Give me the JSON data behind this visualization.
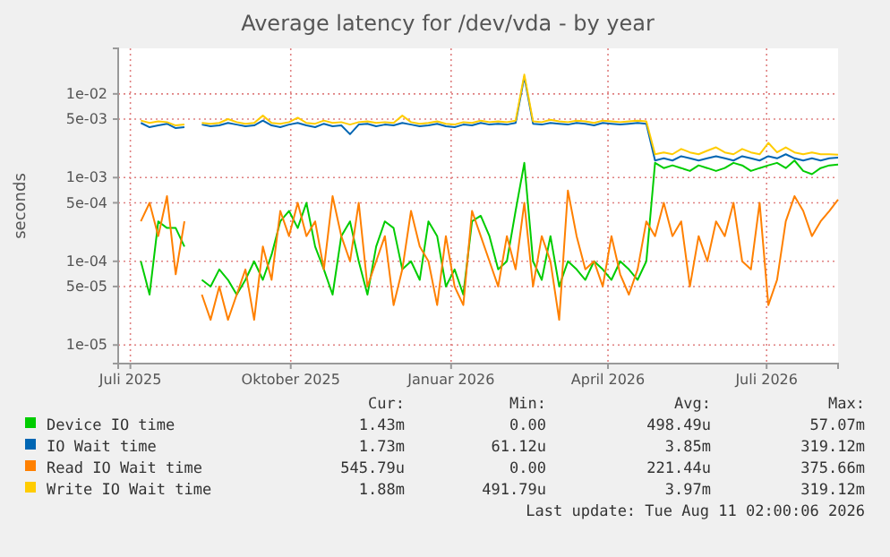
{
  "chart_data": {
    "type": "line",
    "title": "Average latency for /dev/vda - by year",
    "ylabel": "seconds",
    "log": true,
    "grid": true,
    "legend": "bottom",
    "xlim": [
      "2025-06-24",
      "2026-08-11"
    ],
    "xticks": [
      {
        "value": "2025-07-01",
        "label": "Juli 2025"
      },
      {
        "value": "2025-10-01",
        "label": "Oktober 2025"
      },
      {
        "value": "2026-01-01",
        "label": "Januar 2026"
      },
      {
        "value": "2026-04-01",
        "label": "April 2026"
      },
      {
        "value": "2026-07-01",
        "label": "Juli 2026"
      }
    ],
    "ylim": [
      6e-06,
      0.035
    ],
    "yticks": [
      {
        "value": 1e-05,
        "label": "1e-05"
      },
      {
        "value": 5e-05,
        "label": "5e-05"
      },
      {
        "value": 0.0001,
        "label": "1e-04"
      },
      {
        "value": 0.0005,
        "label": "5e-04"
      },
      {
        "value": 0.001,
        "label": "1e-03"
      },
      {
        "value": 0.005,
        "label": "5e-03"
      },
      {
        "value": 0.01,
        "label": "1e-02"
      }
    ],
    "x": [
      "2025-07-07",
      "2025-07-12",
      "2025-07-17",
      "2025-07-22",
      "2025-07-27",
      "2025-08-01",
      "2025-08-06",
      "2025-08-11",
      "2025-08-16",
      "2025-08-21",
      "2025-08-26",
      "2025-08-31",
      "2025-09-05",
      "2025-09-10",
      "2025-09-15",
      "2025-09-20",
      "2025-09-25",
      "2025-09-30",
      "2025-10-05",
      "2025-10-10",
      "2025-10-15",
      "2025-10-20",
      "2025-10-25",
      "2025-10-30",
      "2025-11-04",
      "2025-11-09",
      "2025-11-14",
      "2025-11-19",
      "2025-11-24",
      "2025-11-29",
      "2025-12-04",
      "2025-12-09",
      "2025-12-14",
      "2025-12-19",
      "2025-12-24",
      "2025-12-29",
      "2026-01-03",
      "2026-01-08",
      "2026-01-13",
      "2026-01-18",
      "2026-01-23",
      "2026-01-28",
      "2026-02-02",
      "2026-02-07",
      "2026-02-12",
      "2026-02-17",
      "2026-02-22",
      "2026-02-27",
      "2026-03-04",
      "2026-03-09",
      "2026-03-14",
      "2026-03-19",
      "2026-03-24",
      "2026-03-29",
      "2026-04-03",
      "2026-04-08",
      "2026-04-13",
      "2026-04-18",
      "2026-04-23",
      "2026-04-28",
      "2026-05-03",
      "2026-05-08",
      "2026-05-13",
      "2026-05-18",
      "2026-05-23",
      "2026-05-28",
      "2026-06-02",
      "2026-06-07",
      "2026-06-12",
      "2026-06-17",
      "2026-06-22",
      "2026-06-27",
      "2026-07-02",
      "2026-07-07",
      "2026-07-12",
      "2026-07-17",
      "2026-07-22",
      "2026-07-27",
      "2026-08-01",
      "2026-08-06",
      "2026-08-11"
    ],
    "series": [
      {
        "name": "Device IO time",
        "color": "#00cc00",
        "values": [
          0.0001,
          4e-05,
          0.0003,
          0.00025,
          0.00025,
          0.00015,
          null,
          6e-05,
          5e-05,
          8e-05,
          6e-05,
          4e-05,
          6e-05,
          0.0001,
          6e-05,
          0.00012,
          0.0003,
          0.0004,
          0.00025,
          0.0005,
          0.00015,
          8e-05,
          4e-05,
          0.0002,
          0.0003,
          0.0001,
          4e-05,
          0.00015,
          0.0003,
          0.00025,
          8e-05,
          0.0001,
          6e-05,
          0.0003,
          0.0002,
          5e-05,
          8e-05,
          4e-05,
          0.0003,
          0.00035,
          0.0002,
          8e-05,
          0.0001,
          0.0004,
          0.0015,
          0.0001,
          6e-05,
          0.0002,
          5e-05,
          0.0001,
          8e-05,
          6e-05,
          0.0001,
          8e-05,
          6e-05,
          0.0001,
          8e-05,
          6e-05,
          0.0001,
          0.0015,
          0.0013,
          0.0014,
          0.0013,
          0.0012,
          0.0014,
          0.0013,
          0.0012,
          0.0013,
          0.0015,
          0.0014,
          0.0012,
          0.0013,
          0.0014,
          0.0015,
          0.0013,
          0.0016,
          0.0012,
          0.0011,
          0.0013,
          0.0014,
          0.00143
        ]
      },
      {
        "name": "IO Wait time",
        "color": "#0066b3",
        "values": [
          0.0045,
          0.004,
          0.0042,
          0.0044,
          0.0039,
          0.004,
          null,
          0.0043,
          0.0041,
          0.0042,
          0.0045,
          0.0043,
          0.0041,
          0.0042,
          0.0048,
          0.0042,
          0.004,
          0.0043,
          0.0045,
          0.0042,
          0.004,
          0.0044,
          0.0041,
          0.0042,
          0.0033,
          0.0043,
          0.0044,
          0.0041,
          0.0043,
          0.0042,
          0.0045,
          0.0043,
          0.0041,
          0.0042,
          0.0044,
          0.0041,
          0.004,
          0.0043,
          0.0042,
          0.0045,
          0.0043,
          0.0044,
          0.0043,
          0.0045,
          0.016,
          0.0044,
          0.0043,
          0.0045,
          0.0044,
          0.0043,
          0.0045,
          0.0044,
          0.0042,
          0.0045,
          0.0044,
          0.0043,
          0.0044,
          0.0045,
          0.0044,
          0.0016,
          0.0017,
          0.0016,
          0.0018,
          0.0017,
          0.0016,
          0.0017,
          0.0018,
          0.0017,
          0.0016,
          0.0018,
          0.0017,
          0.0016,
          0.0018,
          0.0017,
          0.0019,
          0.0017,
          0.0016,
          0.0017,
          0.0016,
          0.0017,
          0.00173
        ]
      },
      {
        "name": "Read IO Wait time",
        "color": "#ff8000",
        "values": [
          0.0003,
          0.0005,
          0.0002,
          0.0006,
          7e-05,
          0.0003,
          null,
          4e-05,
          2e-05,
          5e-05,
          2e-05,
          4e-05,
          8e-05,
          2e-05,
          0.00015,
          6e-05,
          0.0004,
          0.0002,
          0.0005,
          0.0002,
          0.0003,
          8e-05,
          0.0006,
          0.0002,
          0.0001,
          0.0005,
          5e-05,
          0.0001,
          0.0002,
          3e-05,
          8e-05,
          0.0004,
          0.00015,
          0.0001,
          3e-05,
          0.0002,
          5e-05,
          3e-05,
          0.0004,
          0.0002,
          0.0001,
          5e-05,
          0.0002,
          8e-05,
          0.0005,
          5e-05,
          0.0002,
          0.0001,
          2e-05,
          0.0007,
          0.0002,
          8e-05,
          0.0001,
          5e-05,
          0.0002,
          7e-05,
          4e-05,
          8e-05,
          0.0003,
          0.0002,
          0.0005,
          0.0002,
          0.0003,
          5e-05,
          0.0002,
          0.0001,
          0.0003,
          0.0002,
          0.0005,
          0.0001,
          8e-05,
          0.0005,
          3e-05,
          6e-05,
          0.0003,
          0.0006,
          0.0004,
          0.0002,
          0.0003,
          0.0004,
          0.00054579
        ]
      },
      {
        "name": "Write IO Wait time",
        "color": "#ffcc00",
        "values": [
          0.0048,
          0.0045,
          0.0047,
          0.0046,
          0.0042,
          0.0043,
          null,
          0.0045,
          0.0044,
          0.0045,
          0.005,
          0.0046,
          0.0044,
          0.0045,
          0.0055,
          0.0045,
          0.0044,
          0.0046,
          0.0052,
          0.0045,
          0.0044,
          0.0048,
          0.0045,
          0.0046,
          0.0043,
          0.0046,
          0.0047,
          0.0045,
          0.0046,
          0.0045,
          0.0055,
          0.0046,
          0.0044,
          0.0045,
          0.0047,
          0.0044,
          0.0043,
          0.0046,
          0.0045,
          0.0048,
          0.0046,
          0.0047,
          0.0046,
          0.0048,
          0.017,
          0.0047,
          0.0046,
          0.0049,
          0.0047,
          0.0046,
          0.0048,
          0.0047,
          0.0045,
          0.0048,
          0.0047,
          0.0046,
          0.0047,
          0.0048,
          0.0047,
          0.0019,
          0.002,
          0.0019,
          0.0022,
          0.002,
          0.0019,
          0.0021,
          0.0023,
          0.002,
          0.0019,
          0.0022,
          0.002,
          0.0019,
          0.0026,
          0.002,
          0.0023,
          0.002,
          0.0019,
          0.002,
          0.0019,
          0.0019,
          0.00188
        ]
      }
    ],
    "annotations": [
      "Cur:",
      "Min:",
      "Avg:",
      "Max:",
      "1.43m",
      "0.00",
      "498.49u",
      "57.07m",
      "1.73m",
      "61.12u",
      "3.85m",
      "319.12m",
      "545.79u",
      "0.00",
      "221.44u",
      "375.66m",
      "1.88m",
      "491.79u",
      "3.97m",
      "319.12m",
      "Last update: Tue Aug 11 02:00:06 2026"
    ]
  }
}
